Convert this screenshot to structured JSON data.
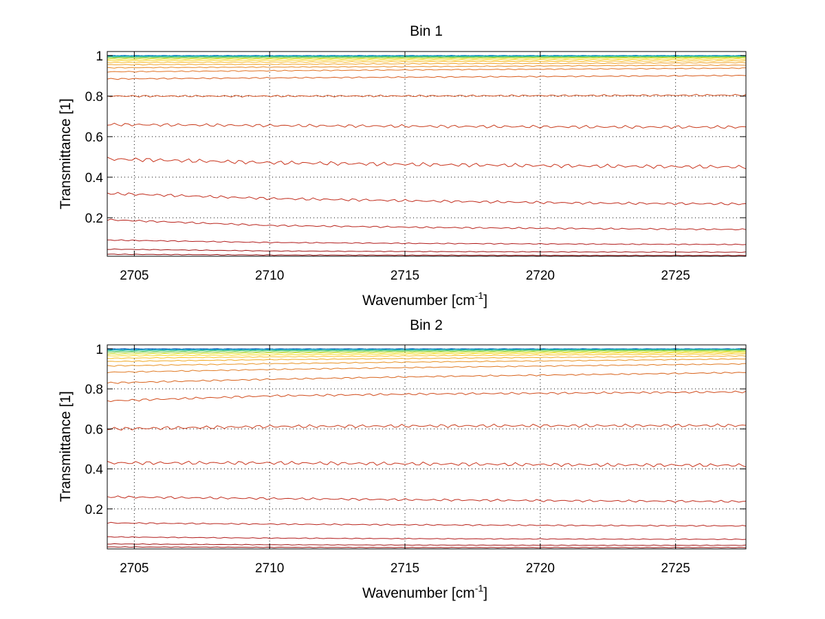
{
  "chart_data": [
    {
      "type": "line",
      "title": "Bin 1",
      "xlabel": "Wavenumber [cm",
      "xlabel_sup": "-1",
      "xlabel_tail": "]",
      "ylabel": "Transmittance [1]",
      "xlim": [
        2704,
        2727.6
      ],
      "ylim": [
        0.01,
        1.02
      ],
      "grid": true,
      "xticks": [
        2705,
        2710,
        2715,
        2720,
        2725
      ],
      "xtick_labels": [
        "2705",
        "2710",
        "2715",
        "2720",
        "2725"
      ],
      "yticks": [
        0.2,
        0.4,
        0.6,
        0.8,
        1.0
      ],
      "ytick_labels": [
        "0.2",
        "0.4",
        "0.6",
        "0.8",
        "1"
      ],
      "x": [
        2704,
        2710,
        2716,
        2722,
        2727.6
      ],
      "series": [
        {
          "color": "#0070c0",
          "values": [
            1.0,
            1.0,
            1.0,
            1.0,
            1.0
          ]
        },
        {
          "color": "#00a0c0",
          "values": [
            0.998,
            0.998,
            0.998,
            0.999,
            0.999
          ]
        },
        {
          "color": "#20b8a0",
          "values": [
            0.995,
            0.996,
            0.996,
            0.997,
            0.997
          ]
        },
        {
          "color": "#60c860",
          "values": [
            0.992,
            0.993,
            0.993,
            0.994,
            0.995
          ]
        },
        {
          "color": "#a0d040",
          "values": [
            0.988,
            0.989,
            0.99,
            0.991,
            0.992
          ]
        },
        {
          "color": "#e0e020",
          "values": [
            0.982,
            0.984,
            0.985,
            0.987,
            0.988
          ]
        },
        {
          "color": "#f8d020",
          "values": [
            0.975,
            0.977,
            0.978,
            0.98,
            0.982
          ]
        },
        {
          "color": "#f8b820",
          "values": [
            0.966,
            0.968,
            0.97,
            0.972,
            0.974
          ]
        },
        {
          "color": "#f0a020",
          "values": [
            0.955,
            0.957,
            0.96,
            0.962,
            0.965
          ]
        },
        {
          "color": "#e88820",
          "values": [
            0.94,
            0.943,
            0.946,
            0.95,
            0.953
          ]
        },
        {
          "color": "#e07020",
          "values": [
            0.92,
            0.925,
            0.93,
            0.934,
            0.938
          ]
        },
        {
          "color": "#d85818",
          "values": [
            0.885,
            0.89,
            0.894,
            0.898,
            0.902
          ]
        },
        {
          "color": "#d04818",
          "values": [
            0.8,
            0.8,
            0.801,
            0.803,
            0.805
          ]
        },
        {
          "color": "#c83818",
          "values": [
            0.66,
            0.655,
            0.651,
            0.648,
            0.647
          ]
        },
        {
          "color": "#c83018",
          "values": [
            0.49,
            0.472,
            0.462,
            0.455,
            0.45
          ]
        },
        {
          "color": "#c02818",
          "values": [
            0.32,
            0.295,
            0.282,
            0.272,
            0.268
          ]
        },
        {
          "color": "#b82018",
          "values": [
            0.19,
            0.162,
            0.152,
            0.146,
            0.142
          ]
        },
        {
          "color": "#b01818",
          "values": [
            0.09,
            0.078,
            0.073,
            0.07,
            0.068
          ]
        },
        {
          "color": "#a01010",
          "values": [
            0.045,
            0.036,
            0.033,
            0.031,
            0.03
          ]
        },
        {
          "color": "#900808",
          "values": [
            0.02,
            0.016,
            0.015,
            0.014,
            0.014
          ]
        }
      ]
    },
    {
      "type": "line",
      "title": "Bin 2",
      "xlabel": "Wavenumber [cm",
      "xlabel_sup": "-1",
      "xlabel_tail": "]",
      "ylabel": "Transmittance [1]",
      "xlim": [
        2704,
        2727.6
      ],
      "ylim": [
        0.0,
        1.02
      ],
      "grid": true,
      "xticks": [
        2705,
        2710,
        2715,
        2720,
        2725
      ],
      "xtick_labels": [
        "2705",
        "2710",
        "2715",
        "2720",
        "2725"
      ],
      "yticks": [
        0.2,
        0.4,
        0.6,
        0.8,
        1.0
      ],
      "ytick_labels": [
        "0.2",
        "0.4",
        "0.6",
        "0.8",
        "1"
      ],
      "x": [
        2704,
        2710,
        2716,
        2722,
        2727.6
      ],
      "series": [
        {
          "color": "#0050b8",
          "values": [
            1.0,
            1.0,
            1.0,
            1.0,
            1.0
          ]
        },
        {
          "color": "#0090c8",
          "values": [
            0.997,
            0.998,
            0.998,
            0.999,
            0.999
          ]
        },
        {
          "color": "#10b0b0",
          "values": [
            0.993,
            0.995,
            0.996,
            0.997,
            0.997
          ]
        },
        {
          "color": "#50c870",
          "values": [
            0.988,
            0.991,
            0.992,
            0.994,
            0.995
          ]
        },
        {
          "color": "#90d048",
          "values": [
            0.982,
            0.985,
            0.988,
            0.99,
            0.992
          ]
        },
        {
          "color": "#d8e020",
          "values": [
            0.974,
            0.979,
            0.982,
            0.985,
            0.987
          ]
        },
        {
          "color": "#f8d820",
          "values": [
            0.965,
            0.97,
            0.975,
            0.979,
            0.982
          ]
        },
        {
          "color": "#f8c020",
          "values": [
            0.953,
            0.96,
            0.966,
            0.971,
            0.975
          ]
        },
        {
          "color": "#f0a820",
          "values": [
            0.937,
            0.946,
            0.953,
            0.959,
            0.965
          ]
        },
        {
          "color": "#e89020",
          "values": [
            0.915,
            0.926,
            0.935,
            0.942,
            0.95
          ]
        },
        {
          "color": "#e07820",
          "values": [
            0.883,
            0.897,
            0.908,
            0.917,
            0.925
          ]
        },
        {
          "color": "#d86018",
          "values": [
            0.83,
            0.848,
            0.862,
            0.872,
            0.882
          ]
        },
        {
          "color": "#d04818",
          "values": [
            0.74,
            0.765,
            0.775,
            0.78,
            0.785
          ]
        },
        {
          "color": "#c83818",
          "values": [
            0.6,
            0.612,
            0.615,
            0.616,
            0.617
          ]
        },
        {
          "color": "#c83018",
          "values": [
            0.43,
            0.43,
            0.425,
            0.42,
            0.418
          ]
        },
        {
          "color": "#c02818",
          "values": [
            0.26,
            0.252,
            0.245,
            0.24,
            0.237
          ]
        },
        {
          "color": "#b82018",
          "values": [
            0.13,
            0.124,
            0.12,
            0.117,
            0.115
          ]
        },
        {
          "color": "#b01818",
          "values": [
            0.06,
            0.054,
            0.051,
            0.049,
            0.048
          ]
        },
        {
          "color": "#a01010",
          "values": [
            0.025,
            0.021,
            0.019,
            0.018,
            0.018
          ]
        },
        {
          "color": "#900808",
          "values": [
            0.01,
            0.008,
            0.007,
            0.007,
            0.007
          ]
        }
      ]
    }
  ]
}
